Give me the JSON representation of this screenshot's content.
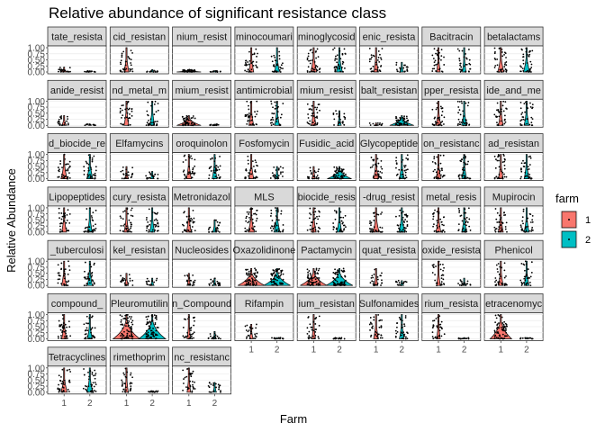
{
  "chart_data": {
    "type": "violin",
    "title": "Relative abundance of significant resistance class",
    "xlabel": "Farm",
    "ylabel": "Relative Abundance",
    "x_categories": [
      "1",
      "2"
    ],
    "y_ticks": [
      "0.00",
      "0.25",
      "0.50",
      "0.75",
      "1.00"
    ],
    "ylim": [
      0,
      1
    ],
    "legend": {
      "title": "farm",
      "placement": "right",
      "entries": [
        {
          "label": "1",
          "color": "#F8766D"
        },
        {
          "label": "2",
          "color": "#00BFC4"
        }
      ]
    },
    "panels": [
      {
        "label": "tate_resista",
        "p": [
          0.2,
          0.05
        ],
        "w": [
          0.2,
          0.1
        ]
      },
      {
        "label": "cid_resistan",
        "p": [
          1.0,
          0.1
        ],
        "w": [
          0.15,
          0.1
        ]
      },
      {
        "label": "nium_resist",
        "p": [
          0.1,
          0.05
        ],
        "w": [
          0.9,
          0.1
        ]
      },
      {
        "label": "minocoumari",
        "p": [
          1.0,
          1.0
        ],
        "w": [
          0.15,
          0.15
        ]
      },
      {
        "label": "minoglycosid",
        "p": [
          1.0,
          1.0
        ],
        "w": [
          0.2,
          0.2
        ]
      },
      {
        "label": "enic_resista",
        "p": [
          1.0,
          0.4
        ],
        "w": [
          0.15,
          0.1
        ]
      },
      {
        "label": "Bacitracin",
        "p": [
          1.0,
          1.0
        ],
        "w": [
          0.1,
          0.1
        ]
      },
      {
        "label": "betalactams",
        "p": [
          1.0,
          1.0
        ],
        "w": [
          0.2,
          0.2
        ]
      },
      {
        "label": "anide_resist",
        "p": [
          0.4,
          0.05
        ],
        "w": [
          0.15,
          0.1
        ]
      },
      {
        "label": "nd_metal_m",
        "p": [
          1.0,
          1.0
        ],
        "w": [
          0.15,
          0.15
        ]
      },
      {
        "label": "mium_resist",
        "p": [
          0.4,
          0.05
        ],
        "w": [
          0.9,
          0.1
        ]
      },
      {
        "label": "antimicrobial",
        "p": [
          1.0,
          1.0
        ],
        "w": [
          0.15,
          0.15
        ]
      },
      {
        "label": "mium_resist",
        "p": [
          1.0,
          0.6
        ],
        "w": [
          0.15,
          0.1
        ]
      },
      {
        "label": "balt_resistan",
        "p": [
          0.1,
          0.4
        ],
        "w": [
          0.1,
          0.9
        ]
      },
      {
        "label": "pper_resista",
        "p": [
          1.0,
          1.0
        ],
        "w": [
          0.15,
          0.15
        ]
      },
      {
        "label": "ide_and_me",
        "p": [
          1.0,
          1.0
        ],
        "w": [
          0.15,
          0.15
        ]
      },
      {
        "label": "d_biocide_re",
        "p": [
          1.0,
          1.0
        ],
        "w": [
          0.2,
          0.2
        ]
      },
      {
        "label": "Elfamycins",
        "p": [
          0.5,
          0.3
        ],
        "w": [
          0.1,
          0.1
        ]
      },
      {
        "label": "oroquinolon",
        "p": [
          1.0,
          1.0
        ],
        "w": [
          0.15,
          0.15
        ]
      },
      {
        "label": "Fosfomycin",
        "p": [
          1.0,
          0.5
        ],
        "w": [
          0.15,
          0.1
        ]
      },
      {
        "label": "Fusidic_acid",
        "p": [
          0.5,
          0.5
        ],
        "w": [
          0.1,
          0.9
        ]
      },
      {
        "label": "Glycopeptide",
        "p": [
          1.0,
          1.0
        ],
        "w": [
          0.15,
          0.15
        ]
      },
      {
        "label": "on_resistanc",
        "p": [
          1.0,
          1.0
        ],
        "w": [
          0.15,
          0.15
        ]
      },
      {
        "label": "ad_resistan",
        "p": [
          1.0,
          1.0
        ],
        "w": [
          0.15,
          0.15
        ]
      },
      {
        "label": "Lipopeptides",
        "p": [
          1.0,
          1.0
        ],
        "w": [
          0.15,
          0.15
        ]
      },
      {
        "label": "cury_resista",
        "p": [
          1.0,
          1.0
        ],
        "w": [
          0.15,
          0.15
        ]
      },
      {
        "label": "Metronidazol",
        "p": [
          1.0,
          0.5
        ],
        "w": [
          0.15,
          0.1
        ]
      },
      {
        "label": "MLS",
        "p": [
          1.0,
          1.0
        ],
        "w": [
          0.2,
          0.2
        ]
      },
      {
        "label": "biocide_resis",
        "p": [
          1.0,
          1.0
        ],
        "w": [
          0.15,
          0.15
        ]
      },
      {
        "label": "-drug_resist",
        "p": [
          1.0,
          1.0
        ],
        "w": [
          0.2,
          0.2
        ]
      },
      {
        "label": "metal_resis",
        "p": [
          1.0,
          1.0
        ],
        "w": [
          0.15,
          0.15
        ]
      },
      {
        "label": "Mupirocin",
        "p": [
          1.0,
          1.0
        ],
        "w": [
          0.15,
          0.15
        ]
      },
      {
        "label": "_tuberculosi",
        "p": [
          1.0,
          1.0
        ],
        "w": [
          0.15,
          0.15
        ]
      },
      {
        "label": "kel_resistan",
        "p": [
          0.5,
          0.3
        ],
        "w": [
          0.1,
          0.1
        ]
      },
      {
        "label": "Nucleosides",
        "p": [
          0.5,
          0.3
        ],
        "w": [
          0.1,
          0.1
        ]
      },
      {
        "label": "Oxazolidinone",
        "p": [
          0.7,
          0.7
        ],
        "w": [
          1.0,
          1.0
        ]
      },
      {
        "label": "Pactamycin",
        "p": [
          0.7,
          0.7
        ],
        "w": [
          1.0,
          1.0
        ]
      },
      {
        "label": "quat_resista",
        "p": [
          0.7,
          0.2
        ],
        "w": [
          0.1,
          0.1
        ]
      },
      {
        "label": "oxide_resista",
        "p": [
          1.0,
          0.3
        ],
        "w": [
          0.1,
          0.1
        ]
      },
      {
        "label": "Phenicol",
        "p": [
          1.0,
          1.0
        ],
        "w": [
          0.15,
          0.15
        ]
      },
      {
        "label": "compound_",
        "p": [
          1.0,
          1.0
        ],
        "w": [
          0.15,
          0.15
        ]
      },
      {
        "label": "Pleuromutilin",
        "p": [
          1.0,
          1.0
        ],
        "w": [
          1.0,
          1.0
        ]
      },
      {
        "label": "n_Compound",
        "p": [
          1.0,
          0.3
        ],
        "w": [
          0.1,
          0.1
        ]
      },
      {
        "label": "Rifampin",
        "p": [
          0.6,
          0.05
        ],
        "w": [
          0.1,
          0.1
        ]
      },
      {
        "label": "ium_resistan",
        "p": [
          1.0,
          0.05
        ],
        "w": [
          0.1,
          0.1
        ]
      },
      {
        "label": "Sulfonamides",
        "p": [
          1.0,
          1.0
        ],
        "w": [
          0.15,
          0.15
        ]
      },
      {
        "label": "rium_resista",
        "p": [
          1.0,
          0.05
        ],
        "w": [
          0.1,
          0.1
        ]
      },
      {
        "label": "etracenomyc",
        "p": [
          1.0,
          0.05
        ],
        "w": [
          0.8,
          0.1
        ]
      },
      {
        "label": "Tetracyclines",
        "p": [
          1.0,
          1.0
        ],
        "w": [
          0.2,
          0.2
        ]
      },
      {
        "label": "rimethoprim",
        "p": [
          1.0,
          0.05
        ],
        "w": [
          0.1,
          0.1
        ]
      },
      {
        "label": "nc_resistanc",
        "p": [
          1.0,
          0.4
        ],
        "w": [
          0.1,
          0.1
        ]
      }
    ]
  }
}
